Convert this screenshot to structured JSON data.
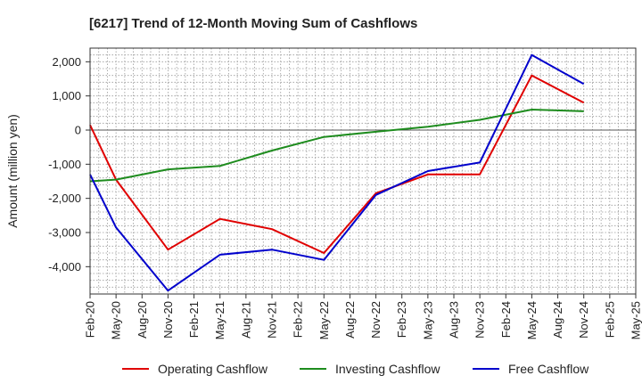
{
  "chart_data": {
    "type": "line",
    "title": "[6217]  Trend of 12-Month Moving Sum of Cashflows",
    "ylabel": "Amount (million yen)",
    "xlabel": "",
    "ylim": [
      -4800,
      2400
    ],
    "yticks": [
      2000,
      1000,
      0,
      -1000,
      -2000,
      -3000,
      -4000
    ],
    "ytick_labels": [
      "2,000",
      "1,000",
      "0",
      "-1,000",
      "-2,000",
      "-3,000",
      "-4,000"
    ],
    "categories": [
      "Feb-20",
      "May-20",
      "Aug-20",
      "Nov-20",
      "Feb-21",
      "May-21",
      "Aug-21",
      "Nov-21",
      "Feb-22",
      "May-22",
      "Aug-22",
      "Nov-22",
      "Feb-23",
      "May-23",
      "Aug-23",
      "Nov-23",
      "Feb-24",
      "May-24",
      "Aug-24",
      "Nov-24",
      "Feb-25",
      "May-25"
    ],
    "grid": true,
    "legend_position": "bottom",
    "series": [
      {
        "name": "Operating Cashflow",
        "color": "#e00000",
        "values": [
          150,
          -1450,
          null,
          -3500,
          null,
          -2600,
          null,
          -2900,
          null,
          -3600,
          null,
          -1850,
          null,
          -1300,
          null,
          -1300,
          null,
          1600,
          null,
          800,
          null,
          null
        ]
      },
      {
        "name": "Investing Cashflow",
        "color": "#1e8c1e",
        "values": [
          -1500,
          -1450,
          null,
          -1150,
          null,
          -1050,
          null,
          -600,
          null,
          -200,
          null,
          -50,
          null,
          100,
          null,
          300,
          null,
          600,
          null,
          550,
          null,
          null
        ]
      },
      {
        "name": "Free Cashflow",
        "color": "#0000cc",
        "values": [
          -1300,
          -2850,
          null,
          -4700,
          null,
          -3650,
          null,
          -3500,
          null,
          -3800,
          null,
          -1900,
          null,
          -1200,
          null,
          -950,
          null,
          2200,
          null,
          1350,
          null,
          null
        ]
      }
    ]
  }
}
